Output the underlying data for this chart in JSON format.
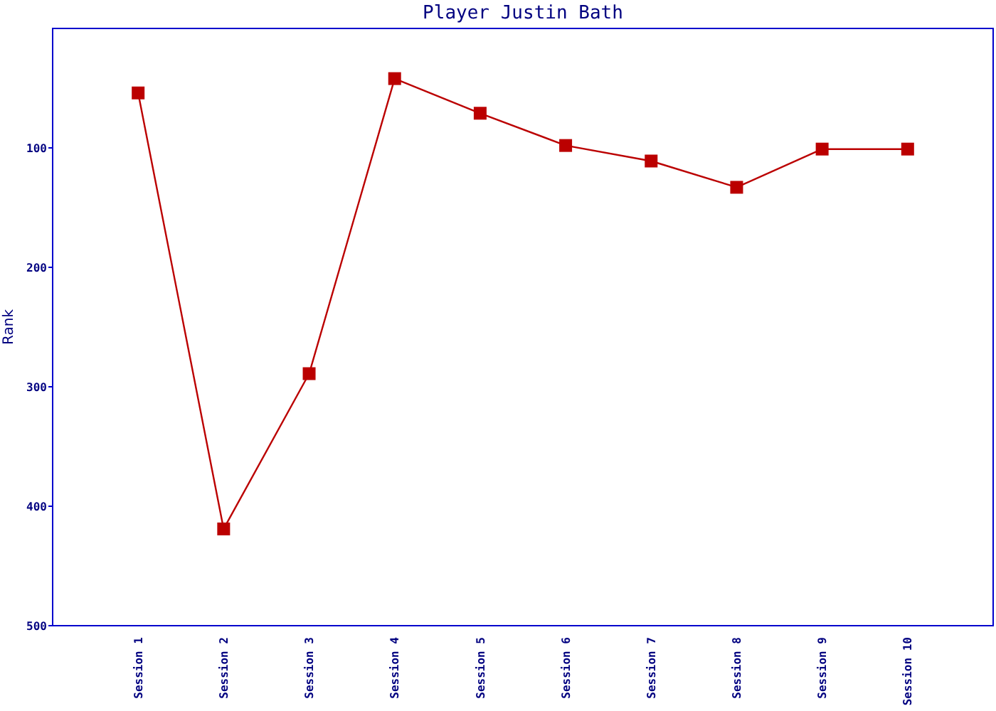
{
  "chart_data": {
    "type": "line",
    "title": "Player Justin Bath",
    "ylabel": "Rank",
    "categories": [
      "Session 1",
      "Session 2",
      "Session 3",
      "Session 4",
      "Session 5",
      "Session 6",
      "Session 7",
      "Session 8",
      "Session 9",
      "Session 10"
    ],
    "series": [
      {
        "color": "#bb0000",
        "values": [
          54,
          419,
          289,
          42,
          71,
          98,
          111,
          133,
          101,
          101
        ]
      }
    ],
    "ylim": [
      500,
      0
    ],
    "yticks": [
      100,
      200,
      300,
      400,
      500
    ],
    "marker": "square",
    "line_style": "solid"
  }
}
